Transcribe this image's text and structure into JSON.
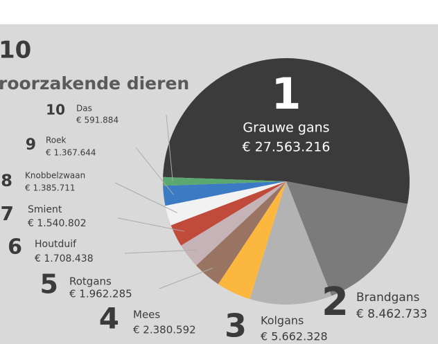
{
  "chart_data": {
    "type": "pie",
    "title": "10",
    "subtitle": "roorzakende dieren",
    "ranks": [
      1,
      2,
      3,
      4,
      5,
      6,
      7,
      8,
      9,
      10
    ],
    "categories": [
      "Grauwe gans",
      "Brandgans",
      "Kolgans",
      "Mees",
      "Rotgans",
      "Houtduif",
      "Smient",
      "Knobbelzwaan",
      "Roek",
      "Das"
    ],
    "values": [
      27563216,
      8462733,
      5662328,
      2380592,
      1962285,
      1708438,
      1540802,
      1385711,
      1367644,
      591884
    ],
    "value_labels": [
      "€ 27.563.216",
      "€ 8.462.733",
      "€ 5.662.328",
      "€ 2.380.592",
      "€ 1.962.285",
      "€ 1.708.438",
      "€ 1.540.802",
      "€ 1.385.711",
      "€ 1.367.644",
      "€ 591.884"
    ],
    "colors": [
      "#3b3b3b",
      "#7b7b7b",
      "#b3b3b3",
      "#fbb73e",
      "#9a7463",
      "#c6b3b8",
      "#c04b3a",
      "#f2f2f2",
      "#3a7bc4",
      "#5aa86f"
    ]
  }
}
